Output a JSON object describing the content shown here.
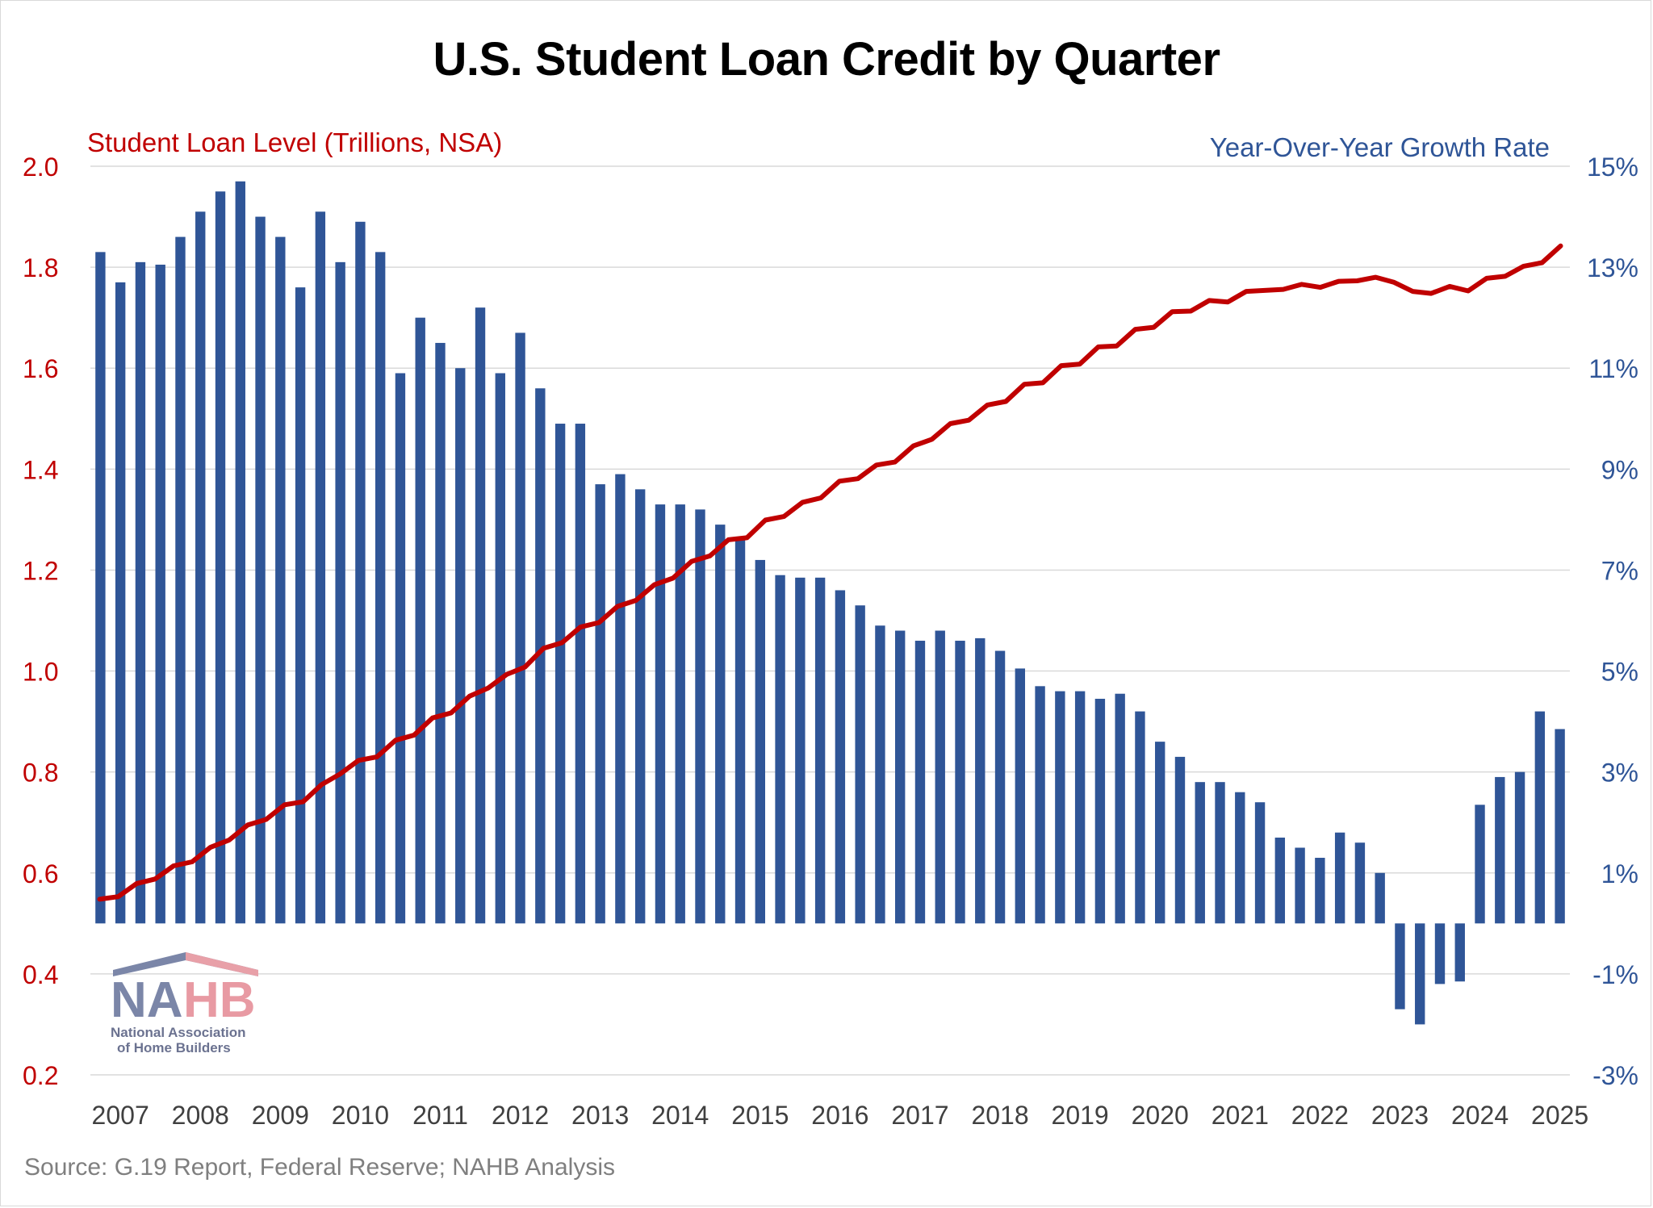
{
  "title": "U.S. Student Loan Credit by Quarter",
  "left_axis_label": "Student Loan Level (Trillions, NSA)",
  "right_axis_label": "Year-Over-Year Growth Rate",
  "source": "Source: G.19 Report, Federal Reserve; NAHB Analysis",
  "logo": {
    "name": "NAHB",
    "subtitle_line1": "National Association",
    "subtitle_line2": "of Home Builders"
  },
  "colors": {
    "line": "#c00000",
    "bars": "#2f5597",
    "grid": "#d9d9d9",
    "left_axis_text": "#c00000",
    "right_axis_text": "#2f5597",
    "x_axis_text": "#404040"
  },
  "chart_data": {
    "type": "bar+line",
    "x_tick_labels": [
      "2007",
      "2008",
      "2009",
      "2010",
      "2011",
      "2012",
      "2013",
      "2014",
      "2015",
      "2016",
      "2017",
      "2018",
      "2019",
      "2020",
      "2021",
      "2022",
      "2023",
      "2024",
      "2025"
    ],
    "left_axis": {
      "ylim": [
        0.2,
        2.0
      ],
      "ticks": [
        "2.0",
        "1.8",
        "1.6",
        "1.4",
        "1.2",
        "1.0",
        "0.8",
        "0.6",
        "0.4",
        "0.2"
      ]
    },
    "right_axis": {
      "ylim": [
        -3,
        15
      ],
      "ticks": [
        "15%",
        "13%",
        "11%",
        "9%",
        "7%",
        "5%",
        "3%",
        "1%",
        "-1%",
        "-3%"
      ]
    },
    "series": [
      {
        "name": "Student Loan Level (Trillions, NSA)",
        "kind": "line",
        "axis": "left",
        "values": [
          0.548,
          0.553,
          0.579,
          0.588,
          0.614,
          0.622,
          0.651,
          0.665,
          0.695,
          0.706,
          0.735,
          0.741,
          0.775,
          0.796,
          0.823,
          0.83,
          0.863,
          0.873,
          0.907,
          0.917,
          0.95,
          0.966,
          0.993,
          1.008,
          1.045,
          1.056,
          1.087,
          1.096,
          1.128,
          1.14,
          1.171,
          1.184,
          1.217,
          1.228,
          1.26,
          1.264,
          1.299,
          1.306,
          1.334,
          1.343,
          1.376,
          1.381,
          1.408,
          1.414,
          1.446,
          1.459,
          1.49,
          1.497,
          1.527,
          1.534,
          1.568,
          1.571,
          1.605,
          1.608,
          1.642,
          1.644,
          1.677,
          1.681,
          1.712,
          1.713,
          1.734,
          1.731,
          1.752,
          1.754,
          1.756,
          1.766,
          1.76,
          1.772,
          1.773,
          1.78,
          1.77,
          1.752,
          1.748,
          1.762,
          1.753,
          1.778,
          1.782,
          1.802,
          1.809,
          1.842
        ]
      },
      {
        "name": "Year-Over-Year Growth Rate",
        "kind": "bar",
        "axis": "right",
        "values": [
          13.3,
          12.7,
          13.1,
          13.05,
          13.6,
          14.1,
          14.5,
          14.7,
          14.0,
          13.6,
          12.6,
          14.1,
          13.1,
          13.9,
          13.3,
          10.9,
          12.0,
          11.5,
          11.0,
          12.2,
          10.9,
          11.7,
          10.6,
          9.9,
          9.9,
          8.7,
          8.9,
          8.6,
          8.3,
          8.3,
          8.2,
          7.9,
          7.6,
          7.2,
          6.9,
          6.85,
          6.85,
          6.6,
          6.3,
          5.9,
          5.8,
          5.6,
          5.8,
          5.6,
          5.65,
          5.4,
          5.05,
          4.7,
          4.6,
          4.6,
          4.45,
          4.55,
          4.2,
          3.6,
          3.3,
          2.8,
          2.8,
          2.6,
          2.4,
          1.7,
          1.5,
          1.3,
          1.8,
          1.6,
          1.0,
          -1.7,
          -2.0,
          -1.2,
          -1.15,
          2.35,
          2.9,
          3.0,
          4.2,
          3.85
        ]
      }
    ],
    "legend": "none",
    "grid": true
  }
}
